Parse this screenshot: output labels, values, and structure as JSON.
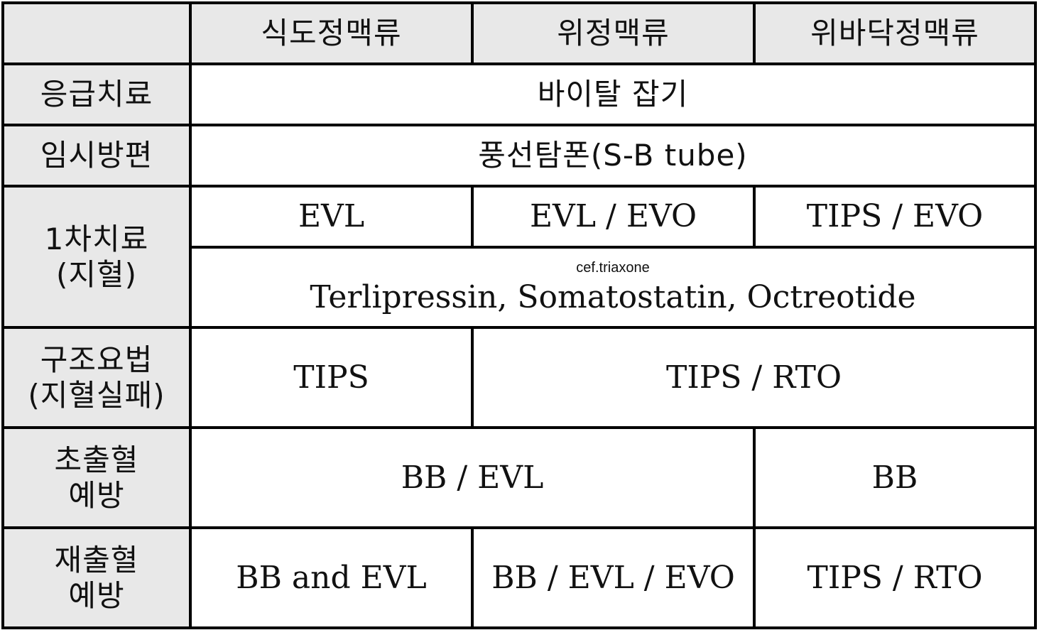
{
  "header": {
    "corner": "",
    "col1": "식도정맥류",
    "col2": "위정맥류",
    "col3": "위바닥정맥류"
  },
  "rows": {
    "emergency": {
      "label": "응급치료",
      "all": "바이탈 잡기"
    },
    "temporary": {
      "label": "임시방편",
      "all": "풍선탐폰(S-B tube)"
    },
    "first_line": {
      "label_line1": "1차치료",
      "label_line2": "(지혈)",
      "col1": "EVL",
      "col2": "EVL / EVO",
      "col3": "TIPS / EVO",
      "all_note": "cef.triaxone",
      "all": "Terlipressin, Somatostatin, Octreotide"
    },
    "rescue": {
      "label_line1": "구조요법",
      "label_line2": "(지혈실패)",
      "col1": "TIPS",
      "col23": "TIPS / RTO"
    },
    "primary_prevention": {
      "label_line1": "초출혈",
      "label_line2": "예방",
      "col12": "BB / EVL",
      "col3": "BB"
    },
    "secondary_prevention": {
      "label_line1": "재출혈",
      "label_line2": "예방",
      "col1": "BB and EVL",
      "col2": "BB / EVL / EVO",
      "col3": "TIPS / RTO"
    }
  }
}
